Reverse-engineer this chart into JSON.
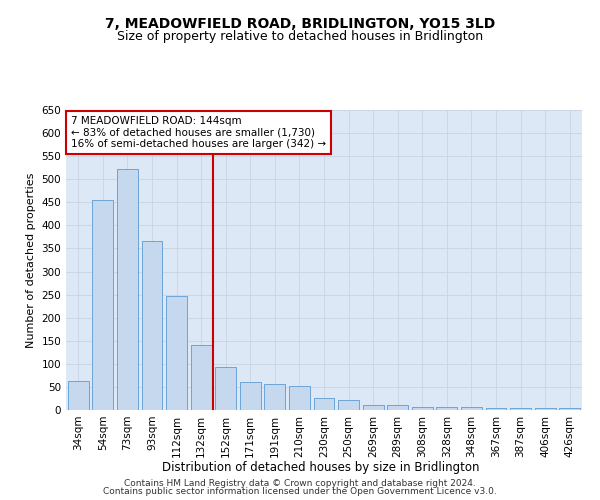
{
  "title": "7, MEADOWFIELD ROAD, BRIDLINGTON, YO15 3LD",
  "subtitle": "Size of property relative to detached houses in Bridlington",
  "xlabel": "Distribution of detached houses by size in Bridlington",
  "ylabel": "Number of detached properties",
  "categories": [
    "34sqm",
    "54sqm",
    "73sqm",
    "93sqm",
    "112sqm",
    "132sqm",
    "152sqm",
    "171sqm",
    "191sqm",
    "210sqm",
    "230sqm",
    "250sqm",
    "269sqm",
    "289sqm",
    "308sqm",
    "328sqm",
    "348sqm",
    "367sqm",
    "387sqm",
    "406sqm",
    "426sqm"
  ],
  "values": [
    62,
    455,
    523,
    367,
    248,
    140,
    93,
    60,
    57,
    53,
    25,
    22,
    10,
    11,
    6,
    7,
    6,
    5,
    4,
    5,
    4
  ],
  "bar_color": "#c5d8ed",
  "bar_edge_color": "#5b9bd5",
  "bar_width": 0.85,
  "vline_index": 6,
  "vline_color": "#cc0000",
  "annotation_text": "7 MEADOWFIELD ROAD: 144sqm\n← 83% of detached houses are smaller (1,730)\n16% of semi-detached houses are larger (342) →",
  "annotation_box_color": "#ffffff",
  "annotation_box_edge": "#cc0000",
  "ylim": [
    0,
    650
  ],
  "yticks": [
    0,
    50,
    100,
    150,
    200,
    250,
    300,
    350,
    400,
    450,
    500,
    550,
    600,
    650
  ],
  "grid_color": "#c8d4e3",
  "bg_color": "#dce8f5",
  "footer_line1": "Contains HM Land Registry data © Crown copyright and database right 2024.",
  "footer_line2": "Contains public sector information licensed under the Open Government Licence v3.0.",
  "title_fontsize": 10,
  "subtitle_fontsize": 9,
  "xlabel_fontsize": 8.5,
  "ylabel_fontsize": 8,
  "tick_fontsize": 7.5,
  "annotation_fontsize": 7.5,
  "footer_fontsize": 6.5
}
